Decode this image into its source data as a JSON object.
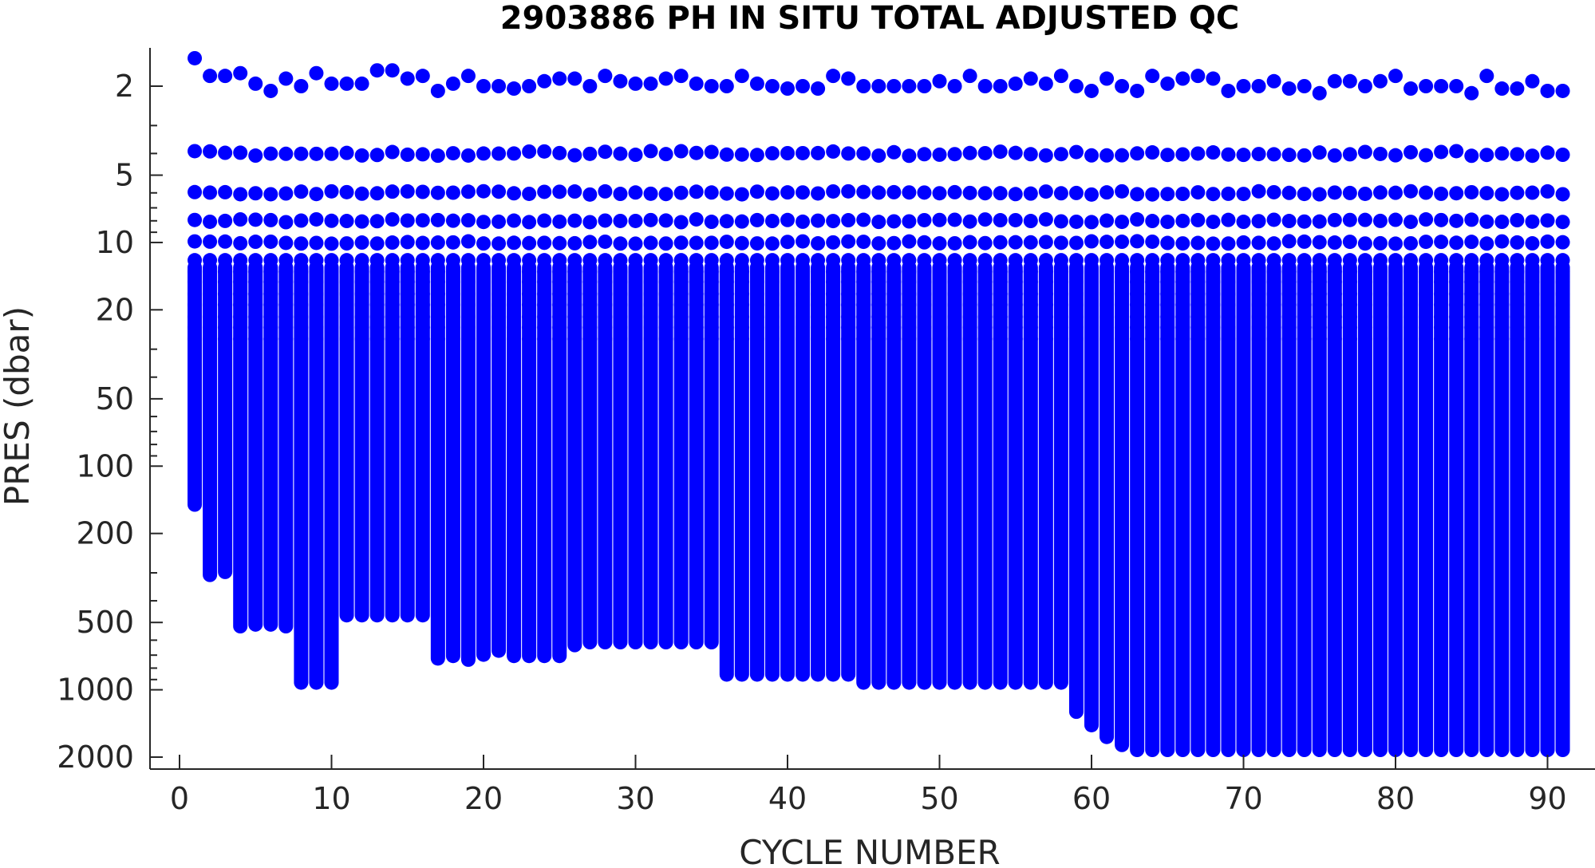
{
  "chart_data": {
    "type": "scatter",
    "title": "2903886  PH IN SITU TOTAL ADJUSTED QC",
    "xlabel": "CYCLE NUMBER",
    "ylabel": "PRES (dbar)",
    "xlim": [
      -1,
      92
    ],
    "ylim": [
      1.45,
      2100
    ],
    "yscale": "log",
    "y_reversed": true,
    "grid": false,
    "legend": "none",
    "marker_color": "#0000ff",
    "x_ticks": [
      0,
      10,
      20,
      30,
      40,
      50,
      60,
      70,
      80,
      90
    ],
    "y_ticks": [
      2,
      5,
      10,
      20,
      50,
      100,
      200,
      500,
      1000,
      2000
    ],
    "tick_labels": {
      "x": [
        "0",
        "10",
        "20",
        "30",
        "40",
        "50",
        "60",
        "70",
        "80",
        "90"
      ],
      "y": [
        "2",
        "5",
        "10",
        "20",
        "50",
        "100",
        "200",
        "500",
        "1000",
        "2000"
      ]
    },
    "cycles": [
      1,
      91
    ],
    "shallow_levels": {
      "surface": [
        1.5,
        1.8,
        1.8,
        1.75,
        1.95,
        2.1,
        1.85,
        2.0,
        1.75,
        1.95,
        1.95,
        1.95,
        1.7,
        1.7,
        1.85,
        1.8,
        2.1,
        1.95,
        1.8,
        2.0,
        2.0,
        2.05,
        2.0,
        1.9,
        1.85,
        1.85,
        2.0,
        1.8,
        1.9,
        1.95,
        1.95,
        1.85,
        1.8,
        1.95,
        2.0,
        2.0,
        1.8,
        1.95,
        2.0,
        2.05,
        2.0,
        2.05,
        1.8,
        1.85,
        2.0,
        2.0,
        2.0,
        2.0,
        2.0,
        1.9,
        2.0,
        1.8,
        2.0,
        2.0,
        1.95,
        1.85,
        1.95,
        1.8,
        2.0,
        2.1,
        1.85,
        2.0,
        2.1,
        1.8,
        1.95,
        1.85,
        1.8,
        1.85,
        2.1,
        2.0,
        2.0,
        1.9,
        2.05,
        2.0,
        2.15,
        1.9,
        1.9,
        2.0,
        1.9,
        1.8,
        2.05,
        2.0,
        2.0,
        2.0,
        2.15,
        1.8,
        2.05,
        2.05,
        1.9,
        2.1,
        2.1
      ],
      "level_2": 4.0,
      "level_3": 6.0,
      "level_4": 8.0,
      "level_5": 10.0
    },
    "profile_bottom_pres": [
      160,
      330,
      320,
      560,
      550,
      550,
      560,
      1000,
      1000,
      1000,
      500,
      500,
      500,
      500,
      500,
      500,
      780,
      760,
      790,
      750,
      720,
      760,
      760,
      760,
      760,
      680,
      660,
      660,
      660,
      660,
      660,
      660,
      660,
      660,
      660,
      920,
      920,
      920,
      920,
      920,
      920,
      920,
      920,
      920,
      1000,
      1000,
      1000,
      1000,
      1000,
      1000,
      1000,
      1000,
      1000,
      1000,
      1000,
      1000,
      1000,
      1000,
      1350,
      1550,
      1750,
      1900,
      2000,
      2000,
      2000,
      2000,
      2000,
      2000,
      2000,
      2000,
      2000,
      2000,
      2000,
      2000,
      2000,
      2000,
      2000,
      2000,
      2000,
      2000,
      2000,
      2000,
      2000,
      2000,
      2000,
      2000,
      2000,
      2000,
      2000,
      2000,
      2000
    ]
  }
}
